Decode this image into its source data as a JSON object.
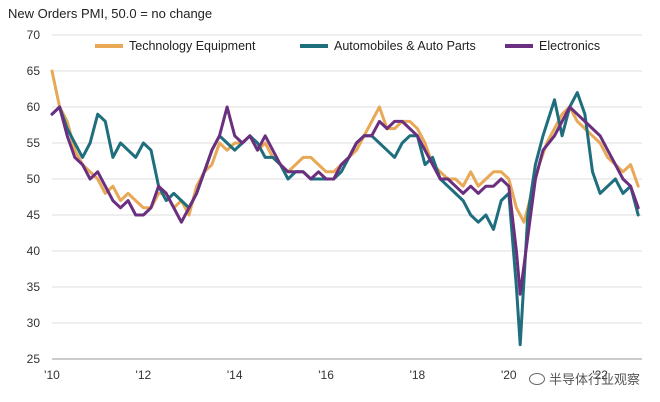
{
  "chart_data": {
    "type": "line",
    "title": "New Orders PMI, 50.0 = no change",
    "xlabel": "",
    "ylabel": "",
    "ylim": [
      25,
      70
    ],
    "xlim": [
      "2010-01",
      "2022-12"
    ],
    "yticks": [
      25,
      30,
      35,
      40,
      45,
      50,
      55,
      60,
      65,
      70
    ],
    "xticks": [
      {
        "label": "'10",
        "date": "2010-01"
      },
      {
        "label": "'12",
        "date": "2012-01"
      },
      {
        "label": "'14",
        "date": "2014-01"
      },
      {
        "label": "'16",
        "date": "2016-01"
      },
      {
        "label": "'18",
        "date": "2018-01"
      },
      {
        "label": "'20",
        "date": "2020-01"
      },
      {
        "label": "'22",
        "date": "2022-01"
      }
    ],
    "grid": "horizontal",
    "legend_position": "top",
    "series": [
      {
        "name": "Technology Equipment",
        "color": "#e8a855",
        "points": [
          [
            "2010-01",
            65
          ],
          [
            "2010-03",
            60
          ],
          [
            "2010-05",
            58
          ],
          [
            "2010-07",
            54
          ],
          [
            "2010-09",
            52
          ],
          [
            "2010-11",
            51
          ],
          [
            "2011-01",
            50
          ],
          [
            "2011-03",
            48
          ],
          [
            "2011-05",
            49
          ],
          [
            "2011-07",
            47
          ],
          [
            "2011-09",
            48
          ],
          [
            "2011-11",
            47
          ],
          [
            "2012-01",
            46
          ],
          [
            "2012-03",
            46
          ],
          [
            "2012-05",
            48
          ],
          [
            "2012-07",
            48
          ],
          [
            "2012-09",
            46
          ],
          [
            "2012-11",
            47
          ],
          [
            "2013-01",
            45
          ],
          [
            "2013-03",
            49
          ],
          [
            "2013-05",
            51
          ],
          [
            "2013-07",
            52
          ],
          [
            "2013-09",
            55
          ],
          [
            "2013-11",
            54
          ],
          [
            "2014-01",
            55
          ],
          [
            "2014-03",
            55
          ],
          [
            "2014-05",
            56
          ],
          [
            "2014-07",
            54
          ],
          [
            "2014-09",
            55
          ],
          [
            "2014-11",
            53
          ],
          [
            "2015-01",
            52
          ],
          [
            "2015-03",
            51
          ],
          [
            "2015-05",
            52
          ],
          [
            "2015-07",
            53
          ],
          [
            "2015-09",
            53
          ],
          [
            "2015-11",
            52
          ],
          [
            "2016-01",
            51
          ],
          [
            "2016-03",
            51
          ],
          [
            "2016-05",
            52
          ],
          [
            "2016-07",
            53
          ],
          [
            "2016-09",
            54
          ],
          [
            "2016-11",
            56
          ],
          [
            "2017-01",
            58
          ],
          [
            "2017-03",
            60
          ],
          [
            "2017-05",
            57
          ],
          [
            "2017-07",
            57
          ],
          [
            "2017-09",
            58
          ],
          [
            "2017-11",
            58
          ],
          [
            "2018-01",
            57
          ],
          [
            "2018-03",
            55
          ],
          [
            "2018-05",
            52
          ],
          [
            "2018-07",
            51
          ],
          [
            "2018-09",
            50
          ],
          [
            "2018-11",
            50
          ],
          [
            "2019-01",
            49
          ],
          [
            "2019-03",
            51
          ],
          [
            "2019-05",
            49
          ],
          [
            "2019-07",
            50
          ],
          [
            "2019-09",
            51
          ],
          [
            "2019-11",
            51
          ],
          [
            "2020-01",
            50
          ],
          [
            "2020-03",
            46
          ],
          [
            "2020-05",
            44
          ],
          [
            "2020-07",
            48
          ],
          [
            "2020-09",
            52
          ],
          [
            "2020-11",
            55
          ],
          [
            "2021-01",
            57
          ],
          [
            "2021-03",
            59
          ],
          [
            "2021-05",
            60
          ],
          [
            "2021-07",
            58
          ],
          [
            "2021-09",
            57
          ],
          [
            "2021-11",
            56
          ],
          [
            "2022-01",
            55
          ],
          [
            "2022-03",
            53
          ],
          [
            "2022-05",
            52
          ],
          [
            "2022-07",
            51
          ],
          [
            "2022-09",
            52
          ],
          [
            "2022-11",
            49
          ]
        ]
      },
      {
        "name": "Automobiles & Auto Parts",
        "color": "#1e6e7e",
        "points": [
          [
            "2010-01",
            59
          ],
          [
            "2010-03",
            60
          ],
          [
            "2010-05",
            57
          ],
          [
            "2010-07",
            55
          ],
          [
            "2010-09",
            53
          ],
          [
            "2010-11",
            55
          ],
          [
            "2011-01",
            59
          ],
          [
            "2011-03",
            58
          ],
          [
            "2011-05",
            53
          ],
          [
            "2011-07",
            55
          ],
          [
            "2011-09",
            54
          ],
          [
            "2011-11",
            53
          ],
          [
            "2012-01",
            55
          ],
          [
            "2012-03",
            54
          ],
          [
            "2012-05",
            49
          ],
          [
            "2012-07",
            47
          ],
          [
            "2012-09",
            48
          ],
          [
            "2012-11",
            47
          ],
          [
            "2013-01",
            46
          ],
          [
            "2013-03",
            48
          ],
          [
            "2013-05",
            51
          ],
          [
            "2013-07",
            54
          ],
          [
            "2013-09",
            56
          ],
          [
            "2013-11",
            55
          ],
          [
            "2014-01",
            54
          ],
          [
            "2014-03",
            55
          ],
          [
            "2014-05",
            56
          ],
          [
            "2014-07",
            55
          ],
          [
            "2014-09",
            53
          ],
          [
            "2014-11",
            53
          ],
          [
            "2015-01",
            52
          ],
          [
            "2015-03",
            50
          ],
          [
            "2015-05",
            51
          ],
          [
            "2015-07",
            51
          ],
          [
            "2015-09",
            50
          ],
          [
            "2015-11",
            50
          ],
          [
            "2016-01",
            50
          ],
          [
            "2016-03",
            50
          ],
          [
            "2016-05",
            51
          ],
          [
            "2016-07",
            53
          ],
          [
            "2016-09",
            55
          ],
          [
            "2016-11",
            56
          ],
          [
            "2017-01",
            56
          ],
          [
            "2017-03",
            55
          ],
          [
            "2017-05",
            54
          ],
          [
            "2017-07",
            53
          ],
          [
            "2017-09",
            55
          ],
          [
            "2017-11",
            56
          ],
          [
            "2018-01",
            56
          ],
          [
            "2018-03",
            52
          ],
          [
            "2018-05",
            53
          ],
          [
            "2018-07",
            50
          ],
          [
            "2018-09",
            49
          ],
          [
            "2018-11",
            48
          ],
          [
            "2019-01",
            47
          ],
          [
            "2019-03",
            45
          ],
          [
            "2019-05",
            44
          ],
          [
            "2019-07",
            45
          ],
          [
            "2019-09",
            43
          ],
          [
            "2019-11",
            47
          ],
          [
            "2020-01",
            48
          ],
          [
            "2020-03",
            35
          ],
          [
            "2020-04",
            27
          ],
          [
            "2020-06",
            45
          ],
          [
            "2020-08",
            52
          ],
          [
            "2020-10",
            56
          ],
          [
            "2021-01",
            61
          ],
          [
            "2021-03",
            56
          ],
          [
            "2021-05",
            60
          ],
          [
            "2021-07",
            62
          ],
          [
            "2021-09",
            59
          ],
          [
            "2021-11",
            51
          ],
          [
            "2022-01",
            48
          ],
          [
            "2022-03",
            49
          ],
          [
            "2022-05",
            50
          ],
          [
            "2022-07",
            48
          ],
          [
            "2022-09",
            49
          ],
          [
            "2022-11",
            45
          ]
        ]
      },
      {
        "name": "Electronics",
        "color": "#6a2f7f",
        "points": [
          [
            "2010-01",
            59
          ],
          [
            "2010-03",
            60
          ],
          [
            "2010-05",
            56
          ],
          [
            "2010-07",
            53
          ],
          [
            "2010-09",
            52
          ],
          [
            "2010-11",
            50
          ],
          [
            "2011-01",
            51
          ],
          [
            "2011-03",
            49
          ],
          [
            "2011-05",
            47
          ],
          [
            "2011-07",
            46
          ],
          [
            "2011-09",
            47
          ],
          [
            "2011-11",
            45
          ],
          [
            "2012-01",
            45
          ],
          [
            "2012-03",
            46
          ],
          [
            "2012-05",
            49
          ],
          [
            "2012-07",
            48
          ],
          [
            "2012-09",
            46
          ],
          [
            "2012-11",
            44
          ],
          [
            "2013-01",
            46
          ],
          [
            "2013-03",
            48
          ],
          [
            "2013-05",
            51
          ],
          [
            "2013-07",
            54
          ],
          [
            "2013-09",
            56
          ],
          [
            "2013-11",
            60
          ],
          [
            "2014-01",
            56
          ],
          [
            "2014-03",
            55
          ],
          [
            "2014-05",
            56
          ],
          [
            "2014-07",
            54
          ],
          [
            "2014-09",
            56
          ],
          [
            "2014-11",
            54
          ],
          [
            "2015-01",
            52
          ],
          [
            "2015-03",
            51
          ],
          [
            "2015-05",
            51
          ],
          [
            "2015-07",
            51
          ],
          [
            "2015-09",
            50
          ],
          [
            "2015-11",
            51
          ],
          [
            "2016-01",
            50
          ],
          [
            "2016-03",
            50
          ],
          [
            "2016-05",
            52
          ],
          [
            "2016-07",
            53
          ],
          [
            "2016-09",
            55
          ],
          [
            "2016-11",
            56
          ],
          [
            "2017-01",
            56
          ],
          [
            "2017-03",
            58
          ],
          [
            "2017-05",
            57
          ],
          [
            "2017-07",
            58
          ],
          [
            "2017-09",
            58
          ],
          [
            "2017-11",
            57
          ],
          [
            "2018-01",
            56
          ],
          [
            "2018-03",
            54
          ],
          [
            "2018-05",
            52
          ],
          [
            "2018-07",
            50
          ],
          [
            "2018-09",
            50
          ],
          [
            "2018-11",
            49
          ],
          [
            "2019-01",
            48
          ],
          [
            "2019-03",
            49
          ],
          [
            "2019-05",
            48
          ],
          [
            "2019-07",
            49
          ],
          [
            "2019-09",
            49
          ],
          [
            "2019-11",
            50
          ],
          [
            "2020-01",
            49
          ],
          [
            "2020-03",
            40
          ],
          [
            "2020-04",
            34
          ],
          [
            "2020-06",
            42
          ],
          [
            "2020-08",
            50
          ],
          [
            "2020-10",
            54
          ],
          [
            "2021-01",
            56
          ],
          [
            "2021-03",
            58
          ],
          [
            "2021-05",
            60
          ],
          [
            "2021-07",
            59
          ],
          [
            "2021-09",
            58
          ],
          [
            "2021-11",
            57
          ],
          [
            "2022-01",
            56
          ],
          [
            "2022-03",
            54
          ],
          [
            "2022-05",
            52
          ],
          [
            "2022-07",
            50
          ],
          [
            "2022-09",
            49
          ],
          [
            "2022-11",
            46
          ]
        ]
      }
    ]
  },
  "watermark": "半导体行业观察"
}
